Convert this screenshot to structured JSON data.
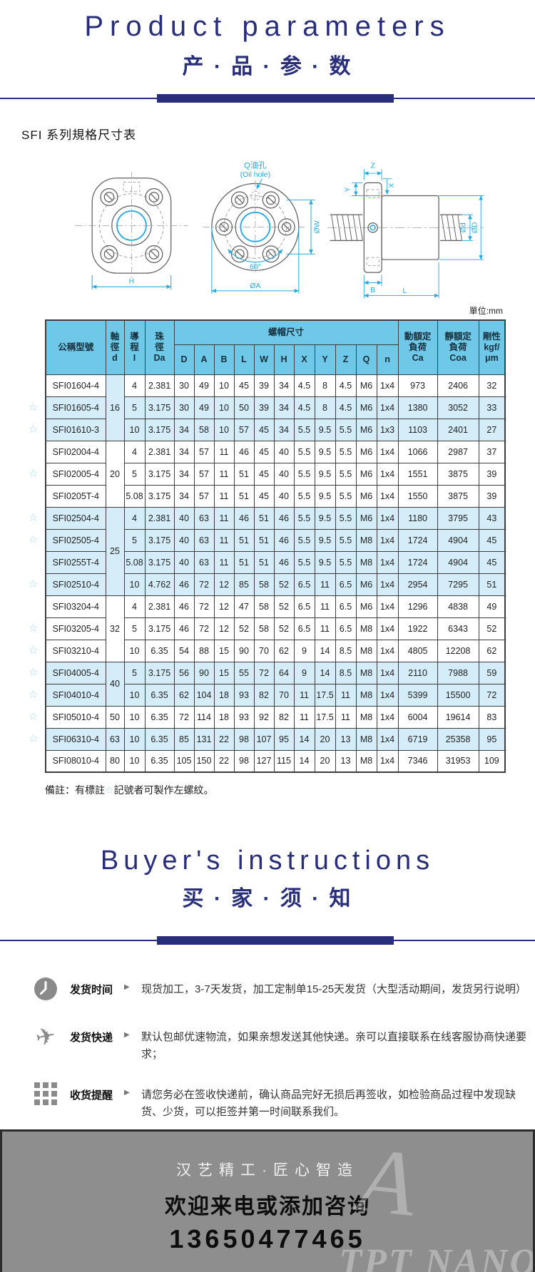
{
  "colors": {
    "navy": "#282e7a",
    "table_header_blue": "#6fc8e8",
    "row_highlight_blue": "#d5edf8",
    "dimension_cyan": "#29abe2",
    "star_blue": "#a8d8f0",
    "icon_gray": "#8a8a8a",
    "footer_gray": "#8e8e8e"
  },
  "ui": {
    "star_char": "☆",
    "arrow_char": "▶"
  },
  "header": {
    "title_en": "Product parameters",
    "title_cn": "产 · 品 · 参 · 数"
  },
  "spec_section": {
    "title": "SFI 系列規格尺寸表",
    "unit_label": "單位:mm"
  },
  "diagram": {
    "oil_hole_cn": "Q油孔",
    "oil_hole_en": "(Oil hole)",
    "dim_w": "ØW",
    "dim_h": "H",
    "dim_angle": "60°",
    "dim_a": "ØA",
    "dim_z": "Z",
    "dim_y": "Y",
    "dim_x": "X",
    "dim_d": "Ød",
    "dim_D": "ØD",
    "dim_b": "B",
    "dim_l": "L"
  },
  "table": {
    "headers": {
      "model": "公稱型號",
      "shaft_dia": "軸\n徑\nd",
      "lead": "導\n程\nI",
      "ball_dia": "珠\n徑\nDa",
      "nut_dims": "螺帽尺寸",
      "dynamic_load": "動額定\n負荷\nCa",
      "static_load": "靜額定\n負荷\nCoa",
      "rigidity": "剛性\nkgf/\nμm"
    },
    "dim_cols": [
      "D",
      "A",
      "B",
      "L",
      "W",
      "H",
      "X",
      "Y",
      "Z",
      "Q",
      "n"
    ],
    "rows": [
      {
        "star": false,
        "shade": false,
        "model": "SFI01604-4",
        "d": "16",
        "d_span": 3,
        "d_shade": true,
        "lead": "4",
        "da": "2.381",
        "dims": [
          "30",
          "49",
          "10",
          "45",
          "39",
          "34",
          "4.5",
          "8",
          "4.5",
          "M6",
          "1x4"
        ],
        "ca": "973",
        "coa": "2406",
        "k": "32"
      },
      {
        "star": true,
        "shade": true,
        "model": "SFI01605-4",
        "lead": "5",
        "da": "3.175",
        "dims": [
          "30",
          "49",
          "10",
          "50",
          "39",
          "34",
          "4.5",
          "8",
          "4.5",
          "M6",
          "1x4"
        ],
        "ca": "1380",
        "coa": "3052",
        "k": "33"
      },
      {
        "star": true,
        "shade": true,
        "model": "SFI01610-3",
        "lead": "10",
        "da": "3.175",
        "dims": [
          "34",
          "58",
          "10",
          "57",
          "45",
          "34",
          "5.5",
          "9.5",
          "5.5",
          "M6",
          "1x3"
        ],
        "ca": "1103",
        "coa": "2401",
        "k": "27"
      },
      {
        "star": false,
        "shade": false,
        "model": "SFI02004-4",
        "d": "20",
        "d_span": 3,
        "d_shade": false,
        "lead": "4",
        "da": "2.381",
        "dims": [
          "34",
          "57",
          "11",
          "46",
          "45",
          "40",
          "5.5",
          "9.5",
          "5.5",
          "M6",
          "1x4"
        ],
        "ca": "1066",
        "coa": "2987",
        "k": "37"
      },
      {
        "star": true,
        "shade": false,
        "model": "SFI02005-4",
        "lead": "5",
        "da": "3.175",
        "dims": [
          "34",
          "57",
          "11",
          "51",
          "45",
          "40",
          "5.5",
          "9.5",
          "5.5",
          "M6",
          "1x4"
        ],
        "ca": "1551",
        "coa": "3875",
        "k": "39"
      },
      {
        "star": false,
        "shade": false,
        "model": "SFI0205T-4",
        "lead": "5.08",
        "da": "3.175",
        "dims": [
          "34",
          "57",
          "11",
          "51",
          "45",
          "40",
          "5.5",
          "9.5",
          "5.5",
          "M6",
          "1x4"
        ],
        "ca": "1550",
        "coa": "3875",
        "k": "39"
      },
      {
        "star": true,
        "shade": true,
        "model": "SFI02504-4",
        "d": "25",
        "d_span": 4,
        "d_shade": true,
        "lead": "4",
        "da": "2.381",
        "dims": [
          "40",
          "63",
          "11",
          "46",
          "51",
          "46",
          "5.5",
          "9.5",
          "5.5",
          "M6",
          "1x4"
        ],
        "ca": "1180",
        "coa": "3795",
        "k": "43"
      },
      {
        "star": true,
        "shade": true,
        "model": "SFI02505-4",
        "lead": "5",
        "da": "3.175",
        "dims": [
          "40",
          "63",
          "11",
          "51",
          "51",
          "46",
          "5.5",
          "9.5",
          "5.5",
          "M8",
          "1x4"
        ],
        "ca": "1724",
        "coa": "4904",
        "k": "45"
      },
      {
        "star": false,
        "shade": true,
        "model": "SFI0255T-4",
        "lead": "5.08",
        "da": "3.175",
        "dims": [
          "40",
          "63",
          "11",
          "51",
          "51",
          "46",
          "5.5",
          "9.5",
          "5.5",
          "M8",
          "1x4"
        ],
        "ca": "1724",
        "coa": "4904",
        "k": "45"
      },
      {
        "star": true,
        "shade": true,
        "model": "SFI02510-4",
        "lead": "10",
        "da": "4.762",
        "dims": [
          "46",
          "72",
          "12",
          "85",
          "58",
          "52",
          "6.5",
          "11",
          "6.5",
          "M6",
          "1x4"
        ],
        "ca": "2954",
        "coa": "7295",
        "k": "51"
      },
      {
        "star": false,
        "shade": false,
        "model": "SFI03204-4",
        "d": "32",
        "d_span": 3,
        "d_shade": false,
        "lead": "4",
        "da": "2.381",
        "dims": [
          "46",
          "72",
          "12",
          "47",
          "58",
          "52",
          "6.5",
          "11",
          "6.5",
          "M6",
          "1x4"
        ],
        "ca": "1296",
        "coa": "4838",
        "k": "49"
      },
      {
        "star": true,
        "shade": false,
        "model": "SFI03205-4",
        "lead": "5",
        "da": "3.175",
        "dims": [
          "46",
          "72",
          "12",
          "52",
          "58",
          "52",
          "6.5",
          "11",
          "6.5",
          "M8",
          "1x4"
        ],
        "ca": "1922",
        "coa": "6343",
        "k": "52"
      },
      {
        "star": true,
        "shade": false,
        "model": "SFI03210-4",
        "lead": "10",
        "da": "6.35",
        "dims": [
          "54",
          "88",
          "15",
          "90",
          "70",
          "62",
          "9",
          "14",
          "8.5",
          "M8",
          "1x4"
        ],
        "ca": "4805",
        "coa": "12208",
        "k": "62"
      },
      {
        "star": true,
        "shade": true,
        "model": "SFI04005-4",
        "d": "40",
        "d_span": 2,
        "d_shade": true,
        "lead": "5",
        "da": "3.175",
        "dims": [
          "56",
          "90",
          "15",
          "55",
          "72",
          "64",
          "9",
          "14",
          "8.5",
          "M8",
          "1x4"
        ],
        "ca": "2110",
        "coa": "7988",
        "k": "59"
      },
      {
        "star": true,
        "shade": true,
        "model": "SFI04010-4",
        "lead": "10",
        "da": "6.35",
        "dims": [
          "62",
          "104",
          "18",
          "93",
          "82",
          "70",
          "11",
          "17.5",
          "11",
          "M8",
          "1x4"
        ],
        "ca": "5399",
        "coa": "15500",
        "k": "72"
      },
      {
        "star": true,
        "shade": false,
        "model": "SFI05010-4",
        "d": "50",
        "d_span": 1,
        "d_shade": false,
        "lead": "10",
        "da": "6.35",
        "dims": [
          "72",
          "114",
          "18",
          "93",
          "92",
          "82",
          "11",
          "17.5",
          "11",
          "M8",
          "1x4"
        ],
        "ca": "6004",
        "coa": "19614",
        "k": "83"
      },
      {
        "star": true,
        "shade": true,
        "model": "SFI06310-4",
        "d": "63",
        "d_span": 1,
        "d_shade": true,
        "lead": "10",
        "da": "6.35",
        "dims": [
          "85",
          "131",
          "22",
          "98",
          "107",
          "95",
          "14",
          "20",
          "13",
          "M8",
          "1x4"
        ],
        "ca": "6719",
        "coa": "25358",
        "k": "95"
      },
      {
        "star": false,
        "shade": false,
        "model": "SFI08010-4",
        "d": "80",
        "d_span": 1,
        "d_shade": false,
        "lead": "10",
        "da": "6.35",
        "dims": [
          "105",
          "150",
          "22",
          "98",
          "127",
          "115",
          "14",
          "20",
          "13",
          "M8",
          "1x4"
        ],
        "ca": "7346",
        "coa": "31953",
        "k": "109"
      }
    ]
  },
  "note": {
    "prefix": "備註：有標註",
    "star": "☆",
    "suffix": "記號者可製作左螺紋。"
  },
  "buyers": {
    "title_en": "Buyer's instructions",
    "title_cn": "买 · 家 · 须 · 知"
  },
  "instructions": [
    {
      "icon": "clock-icon",
      "label": "发货时间",
      "text": "现货加工，3-7天发货，加工定制单15-25天发货（大型活动期间，发货另行说明）"
    },
    {
      "icon": "plane-icon",
      "label": "发货快递",
      "text": "默认包邮优速物流，如果亲想发送其他快递。亲可以直接联系在线客服协商快递要求；"
    },
    {
      "icon": "grid-icon",
      "label": "收货提醒",
      "text": "请您务必在签收快递前，确认商品完好无损后再签收，如检验商品过程中发现缺货、少货，可以拒签并第一时间联系我们。"
    }
  ],
  "footer": {
    "brand": "汉艺精工·匠心智造",
    "welcome": "欢迎来电或添加咨询",
    "phone": "13650477465",
    "watermark": "TPT NANO"
  }
}
